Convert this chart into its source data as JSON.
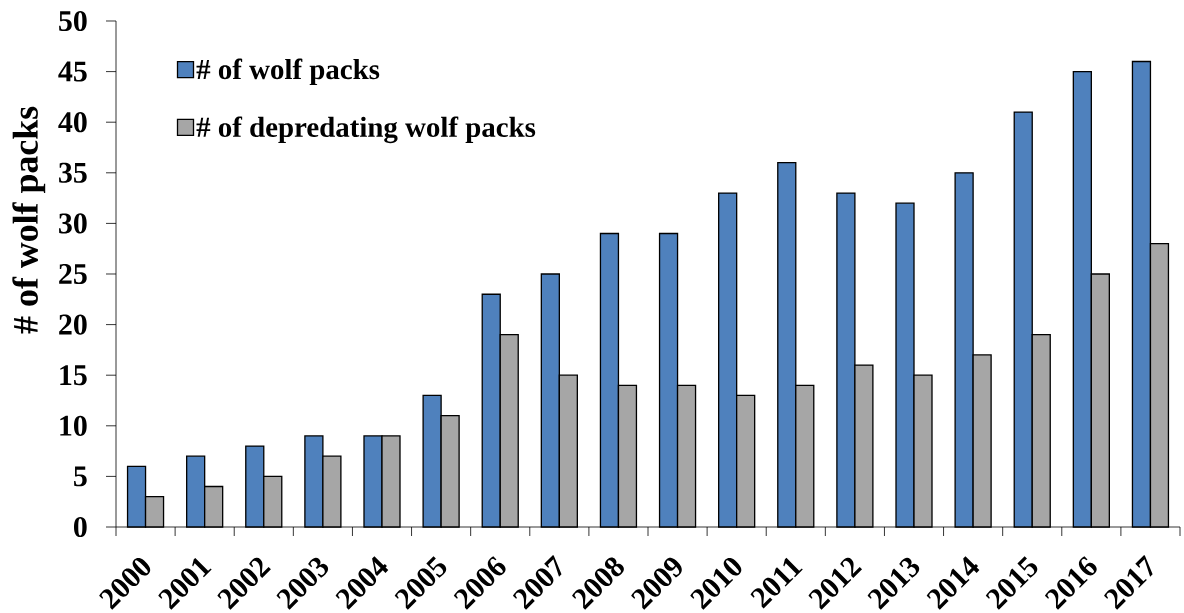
{
  "chart_data": {
    "type": "bar",
    "ylabel": "# of wolf packs",
    "categories": [
      "2000",
      "2001",
      "2002",
      "2003",
      "2004",
      "2005",
      "2006",
      "2007",
      "2008",
      "2009",
      "2010",
      "2011",
      "2012",
      "2013",
      "2014",
      "2015",
      "2016",
      "2017"
    ],
    "series": [
      {
        "name": "# of wolf packs",
        "color": "#4f81bd",
        "values": [
          6,
          7,
          8,
          9,
          9,
          13,
          23,
          25,
          29,
          29,
          33,
          36,
          33,
          32,
          35,
          41,
          45,
          46
        ]
      },
      {
        "name": "# of depredating wolf packs",
        "color": "#a6a6a6",
        "values": [
          3,
          4,
          5,
          7,
          9,
          11,
          19,
          15,
          14,
          14,
          13,
          14,
          16,
          15,
          17,
          19,
          25,
          28
        ]
      }
    ],
    "ylim": [
      0,
      50
    ],
    "yticks": [
      0,
      5,
      10,
      15,
      20,
      25,
      30,
      35,
      40,
      45,
      50
    ],
    "legend": "top left"
  }
}
